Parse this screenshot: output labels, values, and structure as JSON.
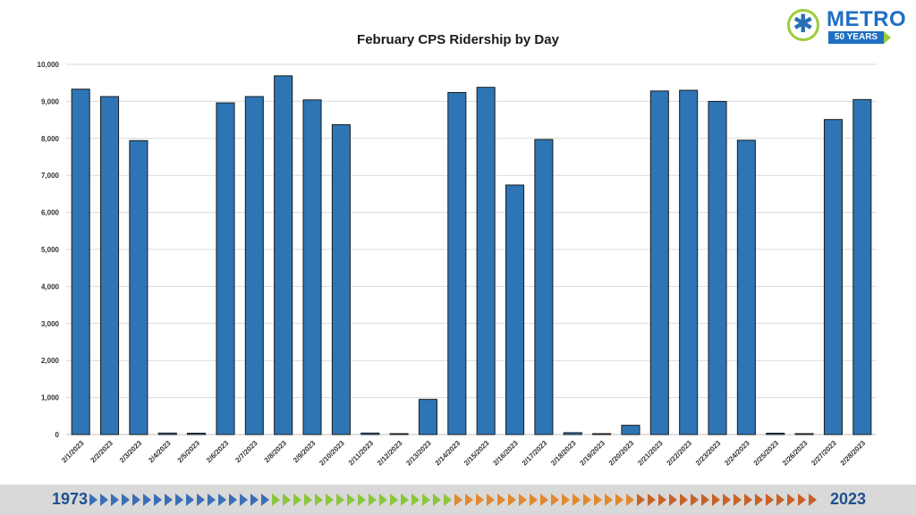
{
  "logo": {
    "name": "METRO",
    "badge": "50 YEARS"
  },
  "footer": {
    "start_year": "1973",
    "end_year": "2023",
    "chevron_colors": [
      "#3a6fb6",
      "#8cc63f",
      "#e2892e",
      "#c7632a"
    ]
  },
  "chart_data": {
    "type": "bar",
    "title": "February CPS Ridership by Day",
    "xlabel": "",
    "ylabel": "",
    "ylim": [
      0,
      10000
    ],
    "yticks": [
      "0",
      "1,000",
      "2,000",
      "3,000",
      "4,000",
      "5,000",
      "6,000",
      "7,000",
      "8,000",
      "9,000",
      "10,000"
    ],
    "grid": true,
    "bar_color": "#2e75b6",
    "categories": [
      "2/1/2023",
      "2/2/2023",
      "2/3/2023",
      "2/4/2023",
      "2/5/2023",
      "2/6/2023",
      "2/7/2023",
      "2/8/2023",
      "2/9/2023",
      "2/10/2023",
      "2/11/2023",
      "2/12/2023",
      "2/13/2023",
      "2/14/2023",
      "2/15/2023",
      "2/16/2023",
      "2/17/2023",
      "2/18/2023",
      "2/19/2023",
      "2/20/2023",
      "2/21/2023",
      "2/22/2023",
      "2/23/2023",
      "2/24/2023",
      "2/25/2023",
      "2/26/2023",
      "2/27/2023",
      "2/28/2023"
    ],
    "values": [
      9330,
      9130,
      7940,
      40,
      10,
      8960,
      9130,
      9690,
      9040,
      8370,
      40,
      0,
      950,
      9240,
      9380,
      6740,
      7970,
      50,
      0,
      250,
      9280,
      9300,
      9000,
      7950,
      30,
      0,
      8510,
      9050
    ]
  }
}
